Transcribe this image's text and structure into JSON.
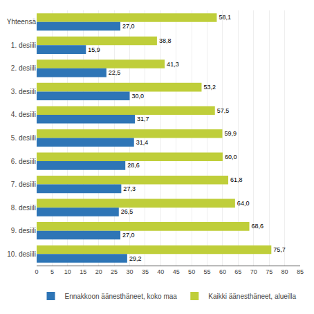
{
  "chart_data": {
    "type": "bar",
    "orientation": "horizontal",
    "categories": [
      "Yhteensä",
      "1. desiili",
      "2. desiili",
      "3. desiili",
      "4. desiili",
      "5. desiili",
      "6. desiili",
      "7. desiili",
      "8. desiili",
      "9. desiili",
      "10. desiili"
    ],
    "series": [
      {
        "name": "Kaikki äänesthäneet, alueilla",
        "color": "#BFCE3A",
        "values": [
          58.1,
          38.8,
          41.3,
          53.2,
          57.5,
          59.9,
          60.0,
          61.8,
          64.0,
          68.6,
          75.7
        ],
        "value_labels": [
          "58,1",
          "38,8",
          "41,3",
          "53,2",
          "57,5",
          "59,9",
          "60,0",
          "61,8",
          "64,0",
          "68,6",
          "75,7"
        ]
      },
      {
        "name": "Ennakkoon äänesthäneet, koko maa",
        "color": "#2E75B6",
        "values": [
          27.0,
          15.9,
          22.5,
          30.0,
          31.7,
          31.4,
          28.6,
          27.3,
          26.5,
          27.0,
          29.2
        ],
        "value_labels": [
          "27,0",
          "15,9",
          "22,5",
          "30,0",
          "31,7",
          "31,4",
          "28,6",
          "27,3",
          "26,5",
          "27,0",
          "29,2"
        ]
      }
    ],
    "xlim": [
      0,
      85
    ],
    "xticks": [
      0,
      5,
      10,
      15,
      20,
      25,
      30,
      35,
      40,
      45,
      50,
      55,
      60,
      65,
      70,
      75,
      80,
      85
    ],
    "grid": true,
    "legend": "bottom",
    "data_labels": true
  }
}
